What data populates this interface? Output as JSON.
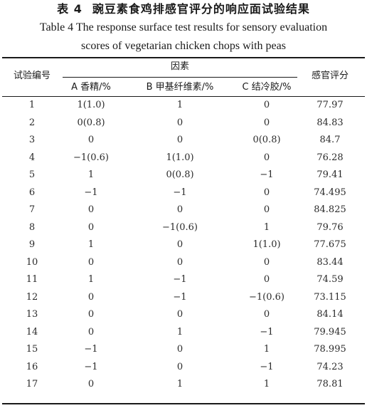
{
  "table": {
    "number": "表 4",
    "title_zh": "豌豆素食鸡排感官评分的响应面试验结果",
    "title_en_line1": "Table 4  The response surface test results for sensory evaluation",
    "title_en_line2": "scores of vegetarian chicken chops with peas",
    "headers": {
      "run": "试验编号",
      "factors": "因素",
      "factor_a": "A 香精/%",
      "factor_b": "B 甲基纤维素/%",
      "factor_c": "C 结冷胶/%",
      "score": "感官评分"
    },
    "rows": [
      {
        "run": "1",
        "a": "1(1.0)",
        "b": "1",
        "c": "0",
        "score": "77.97"
      },
      {
        "run": "2",
        "a": "0(0.8)",
        "b": "0",
        "c": "0",
        "score": "84.83"
      },
      {
        "run": "3",
        "a": "0",
        "b": "0",
        "c": "0(0.8)",
        "score": "84.7"
      },
      {
        "run": "4",
        "a": "−1(0.6)",
        "b": "1(1.0)",
        "c": "0",
        "score": "76.28"
      },
      {
        "run": "5",
        "a": "1",
        "b": "0(0.8)",
        "c": "−1",
        "score": "79.41"
      },
      {
        "run": "6",
        "a": "−1",
        "b": "−1",
        "c": "0",
        "score": "74.495"
      },
      {
        "run": "7",
        "a": "0",
        "b": "0",
        "c": "0",
        "score": "84.825"
      },
      {
        "run": "8",
        "a": "0",
        "b": "−1(0.6)",
        "c": "1",
        "score": "79.76"
      },
      {
        "run": "9",
        "a": "1",
        "b": "0",
        "c": "1(1.0)",
        "score": "77.675"
      },
      {
        "run": "10",
        "a": "0",
        "b": "0",
        "c": "0",
        "score": "83.44"
      },
      {
        "run": "11",
        "a": "1",
        "b": "−1",
        "c": "0",
        "score": "74.59"
      },
      {
        "run": "12",
        "a": "0",
        "b": "−1",
        "c": "−1(0.6)",
        "score": "73.115"
      },
      {
        "run": "13",
        "a": "0",
        "b": "0",
        "c": "0",
        "score": "84.14"
      },
      {
        "run": "14",
        "a": "0",
        "b": "1",
        "c": "−1",
        "score": "79.945"
      },
      {
        "run": "15",
        "a": "−1",
        "b": "0",
        "c": "1",
        "score": "78.995"
      },
      {
        "run": "16",
        "a": "−1",
        "b": "0",
        "c": "−1",
        "score": "74.23"
      },
      {
        "run": "17",
        "a": "0",
        "b": "1",
        "c": "1",
        "score": "78.81"
      }
    ]
  }
}
